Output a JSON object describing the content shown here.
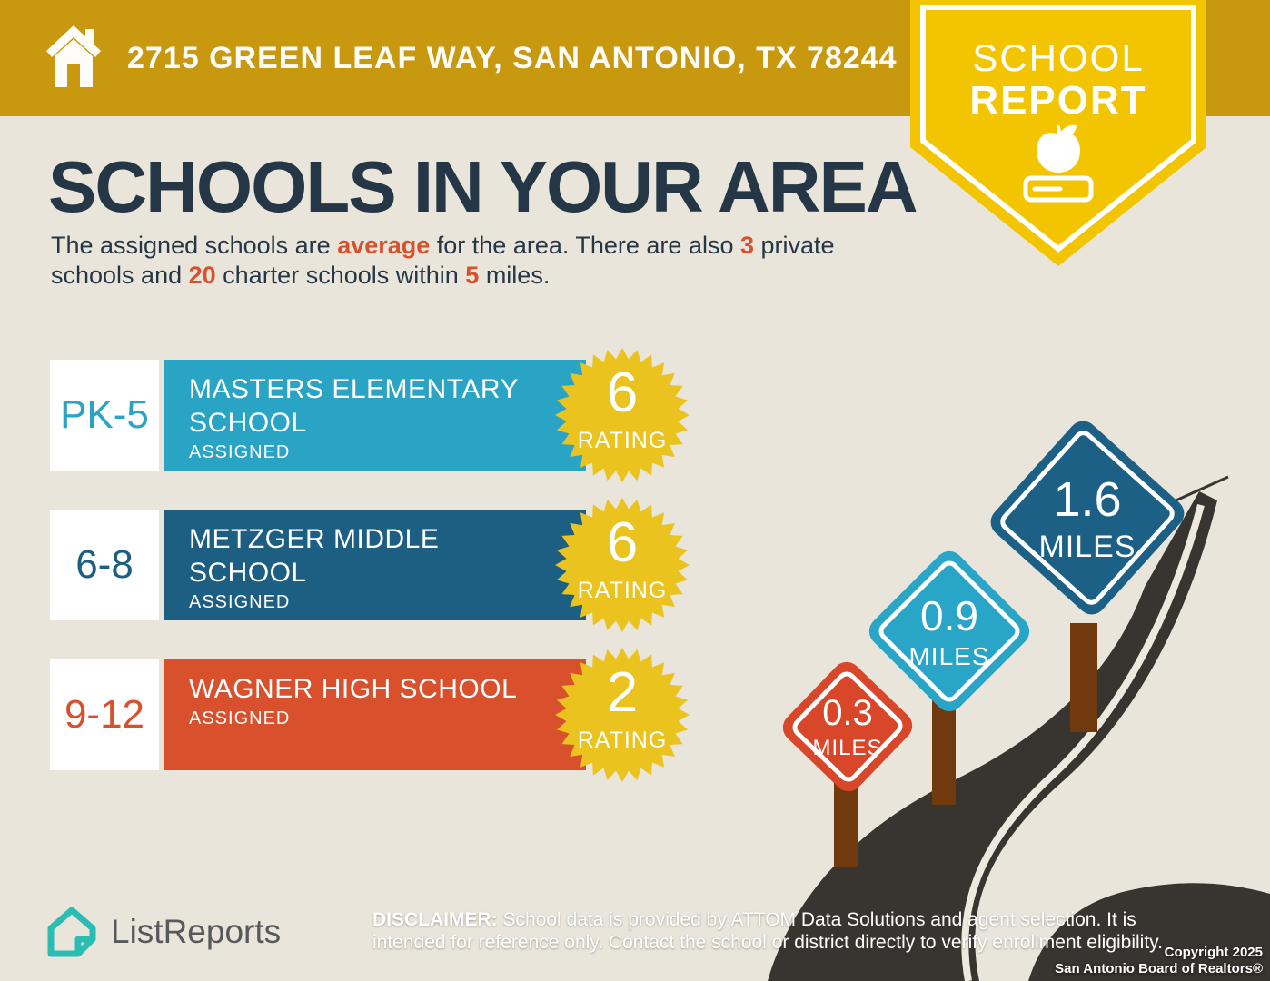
{
  "header": {
    "address": "2715 GREEN LEAF WAY, SAN ANTONIO, TX 78244",
    "ribbon": {
      "line1": "SCHOOL",
      "line2": "REPORT"
    }
  },
  "title": "SCHOOLS IN YOUR AREA",
  "subtitle_parts": [
    {
      "text": "The assigned schools are ",
      "emphasis": false
    },
    {
      "text": "average",
      "emphasis": true
    },
    {
      "text": " for the area. There are also ",
      "emphasis": false
    },
    {
      "text": "3",
      "emphasis": true
    },
    {
      "text": " private schools and ",
      "emphasis": false
    },
    {
      "text": "20",
      "emphasis": true
    },
    {
      "text": " charter schools within ",
      "emphasis": false
    },
    {
      "text": "5",
      "emphasis": true
    },
    {
      "text": " miles.",
      "emphasis": false
    }
  ],
  "schools": {
    "items": [
      {
        "grade": "PK-5",
        "name": "MASTERS ELEMENTARY SCHOOL",
        "tag": "ASSIGNED",
        "rating": "6",
        "rating_label": "RATING",
        "color": "#2AA4C5"
      },
      {
        "grade": "6-8",
        "name": "METZGER MIDDLE SCHOOL",
        "tag": "ASSIGNED",
        "rating": "6",
        "rating_label": "RATING",
        "color": "#1D5F82"
      },
      {
        "grade": "9-12",
        "name": "WAGNER HIGH SCHOOL",
        "tag": "ASSIGNED",
        "rating": "2",
        "rating_label": "RATING",
        "color": "#D8502C"
      }
    ]
  },
  "distance_signs": [
    {
      "value": "0.3",
      "unit": "MILES",
      "color": "#D9472B"
    },
    {
      "value": "0.9",
      "unit": "MILES",
      "color": "#29A5C7"
    },
    {
      "value": "1.6",
      "unit": "MILES",
      "color": "#1D6086"
    }
  ],
  "footer": {
    "brand": "ListReports",
    "disclaimer_label": "DISCLAIMER:",
    "disclaimer_text": " School data is provided by ATTOM Data Solutions and agent selection. It is intended for reference only. Contact the school or district directly to verify enrollment eligibility.",
    "copyright_line1": "Copyright 2025",
    "copyright_line2": "San Antonio Board of Realtors®"
  },
  "icons": {
    "banner": "house-icon",
    "ribbon": "apple-on-book-icon",
    "footer": "listreports-house-icon"
  },
  "colors": {
    "banner_gold": "#C8990F",
    "ribbon_yellow": "#F2C500",
    "background_beige": "#E9E5DB",
    "title_navy": "#253746",
    "accent_orange": "#D8502C",
    "starburst_yellow": "#EBC31E",
    "road_dark": "#383430",
    "road_line": "#EDE9DF",
    "post_brown": "#713A0E",
    "logo_teal": "#2BBCB4"
  }
}
